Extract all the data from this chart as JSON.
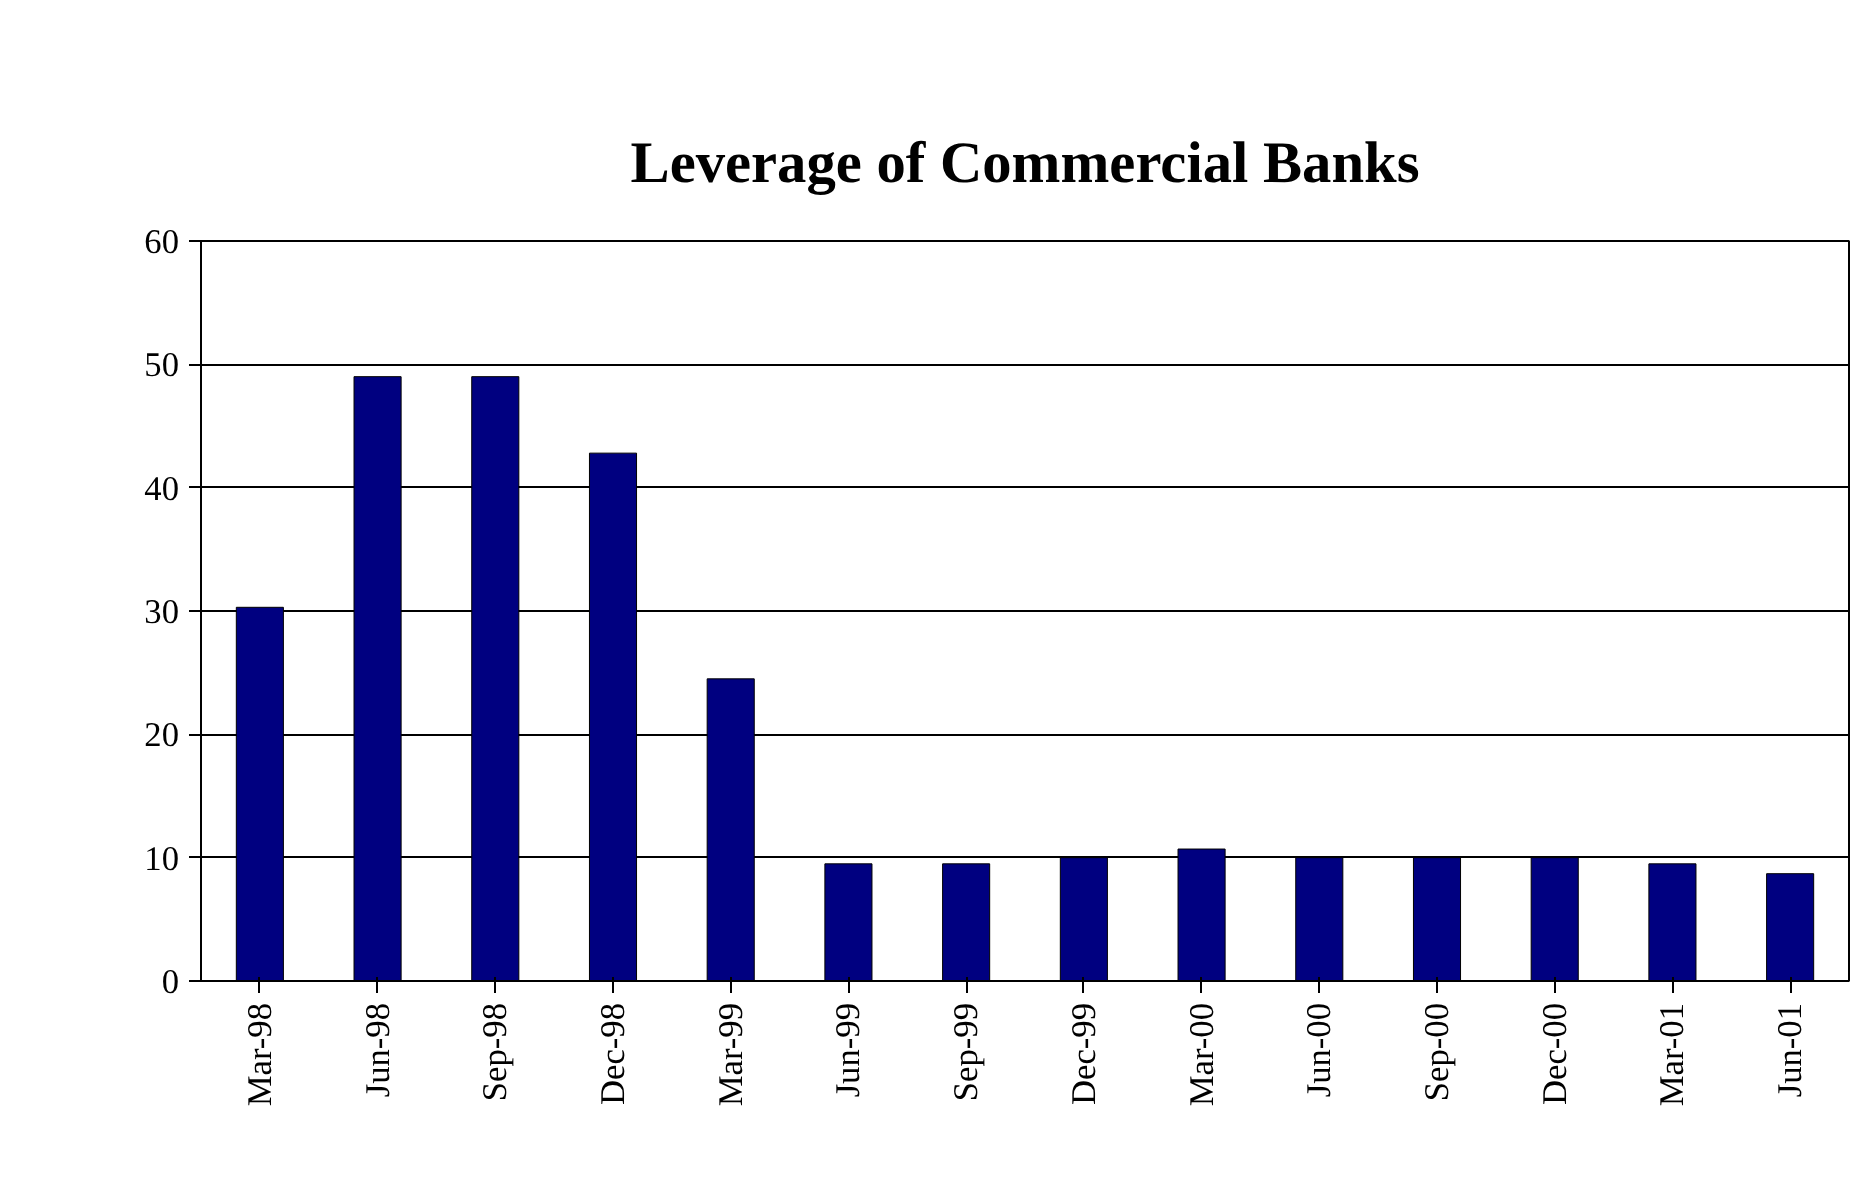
{
  "chart_data": {
    "type": "bar",
    "title": "Leverage of Commercial Banks",
    "categories": [
      "Mar-98",
      "Jun-98",
      "Sep-98",
      "Dec-98",
      "Mar-99",
      "Jun-99",
      "Sep-99",
      "Dec-99",
      "Mar-00",
      "Jun-00",
      "Sep-00",
      "Dec-00",
      "Mar-01",
      "Jun-01"
    ],
    "values": [
      30.3,
      49.0,
      49.0,
      42.8,
      24.5,
      9.5,
      9.5,
      10.0,
      10.7,
      10.0,
      10.0,
      10.0,
      9.5,
      8.7
    ],
    "color": "#000080",
    "ylim": [
      0,
      60
    ],
    "yticks": [
      0,
      10,
      20,
      30,
      40,
      50,
      60
    ],
    "grid": "y"
  }
}
